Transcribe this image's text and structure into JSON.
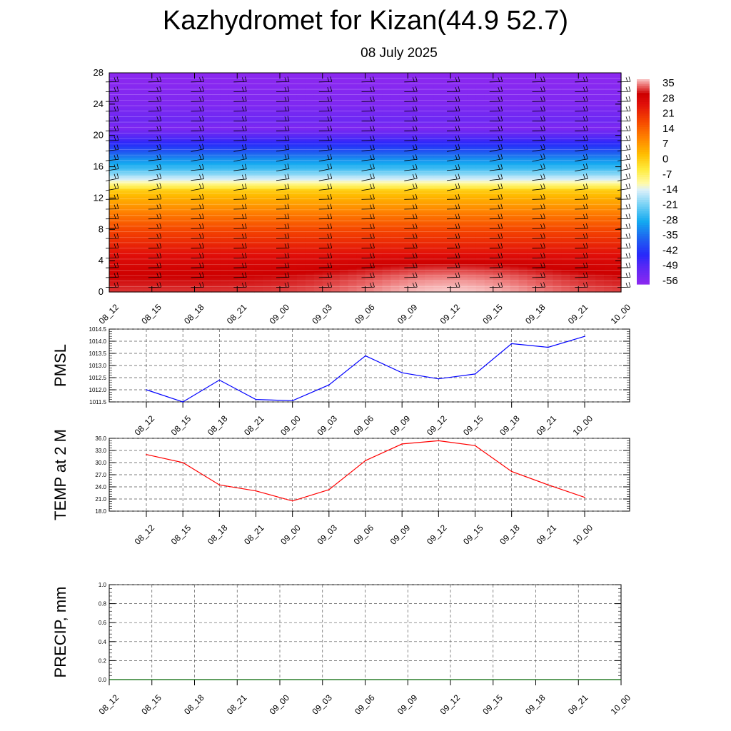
{
  "page": {
    "title": "Kazhydromet for Kizan(44.9 52.7)",
    "subtitle": "08 July 2025"
  },
  "colors": {
    "pmsl_line": "#0000ff",
    "temp_line": "#ff0000",
    "precip_line": "#006400",
    "grid": "#555555",
    "wind_barb": "#000000"
  },
  "chart_data": [
    {
      "id": "cross_section",
      "type": "heatmap",
      "title": "",
      "xlabel": "",
      "ylabel": "",
      "x": [
        "08_12",
        "08_15",
        "08_18",
        "08_21",
        "09_00",
        "09_03",
        "09_06",
        "09_09",
        "09_12",
        "09_15",
        "09_18",
        "09_21",
        "10_00"
      ],
      "ylim": [
        0,
        28
      ],
      "yticks": [
        0,
        4,
        8,
        12,
        16,
        20,
        24,
        28
      ],
      "colorbar": {
        "labels": [
          "35",
          "28",
          "21",
          "14",
          "7",
          "0",
          "-7",
          "-14",
          "-21",
          "-28",
          "-35",
          "-42",
          "-49",
          "-56"
        ],
        "range": [
          -60,
          38
        ]
      },
      "temperature_profile": [
        {
          "level": 0,
          "value": 33
        },
        {
          "level": 2,
          "value": 31
        },
        {
          "level": 4,
          "value": 28
        },
        {
          "level": 6,
          "value": 23
        },
        {
          "level": 8,
          "value": 18
        },
        {
          "level": 10,
          "value": 11
        },
        {
          "level": 12,
          "value": 4
        },
        {
          "level": 13,
          "value": 0
        },
        {
          "level": 13.8,
          "value": -10
        },
        {
          "level": 15,
          "value": -20
        },
        {
          "level": 16,
          "value": -28
        },
        {
          "level": 17,
          "value": -33
        },
        {
          "level": 18,
          "value": -40
        },
        {
          "level": 19,
          "value": -46
        },
        {
          "level": 20,
          "value": -52
        },
        {
          "level": 21,
          "value": -58
        },
        {
          "level": 22,
          "value": -55
        },
        {
          "level": 24,
          "value": -58
        },
        {
          "level": 26,
          "value": -59
        },
        {
          "level": 28,
          "value": -60
        }
      ],
      "surface_warm_peak": {
        "time": "09_12",
        "value": 38
      },
      "wind_barbs": "present"
    },
    {
      "id": "pmsl",
      "type": "line",
      "ylabel": "PMSL",
      "x": [
        "08_12",
        "08_15",
        "08_18",
        "08_21",
        "09_00",
        "09_03",
        "09_06",
        "09_09",
        "09_12",
        "09_15",
        "09_18",
        "09_21",
        "10_00"
      ],
      "ylim": [
        1011.5,
        1014.5
      ],
      "yticks": [
        "1011.5",
        "1012.0",
        "1012.5",
        "1013.0",
        "1013.5",
        "1014.0",
        "1014.5"
      ],
      "series": [
        {
          "values": [
            1012.0,
            1011.5,
            1012.4,
            1011.6,
            1011.55,
            1012.2,
            1013.4,
            1012.7,
            1012.45,
            1012.65,
            1013.9,
            1013.75,
            1014.2
          ]
        }
      ]
    },
    {
      "id": "temp2m",
      "type": "line",
      "ylabel": "TEMP at 2 M",
      "x": [
        "08_12",
        "08_15",
        "08_18",
        "08_21",
        "09_00",
        "09_03",
        "09_06",
        "09_09",
        "09_12",
        "09_15",
        "09_18",
        "09_21",
        "10_00"
      ],
      "ylim": [
        18.0,
        36.0
      ],
      "yticks": [
        "18.0",
        "21.0",
        "24.0",
        "27.0",
        "30.0",
        "33.0",
        "36.0"
      ],
      "series": [
        {
          "values": [
            32.0,
            30.0,
            24.5,
            23.0,
            20.5,
            23.3,
            30.5,
            34.6,
            35.4,
            34.2,
            27.8,
            24.5,
            21.4
          ]
        }
      ]
    },
    {
      "id": "precip",
      "type": "line",
      "ylabel": "PRECIP, mm",
      "x": [
        "08_12",
        "08_15",
        "08_18",
        "08_21",
        "09_00",
        "09_03",
        "09_06",
        "09_09",
        "09_12",
        "09_15",
        "09_18",
        "09_21",
        "10_00"
      ],
      "ylim": [
        0.0,
        1.0
      ],
      "yticks": [
        "0.0",
        "0.2",
        "0.4",
        "0.6",
        "0.8",
        "1.0"
      ],
      "series": [
        {
          "values": [
            0.0,
            0.0,
            0.0,
            0.0,
            0.0,
            0.0,
            0.0,
            0.0,
            0.0,
            0.0,
            0.0,
            0.0,
            0.0
          ]
        }
      ]
    }
  ]
}
